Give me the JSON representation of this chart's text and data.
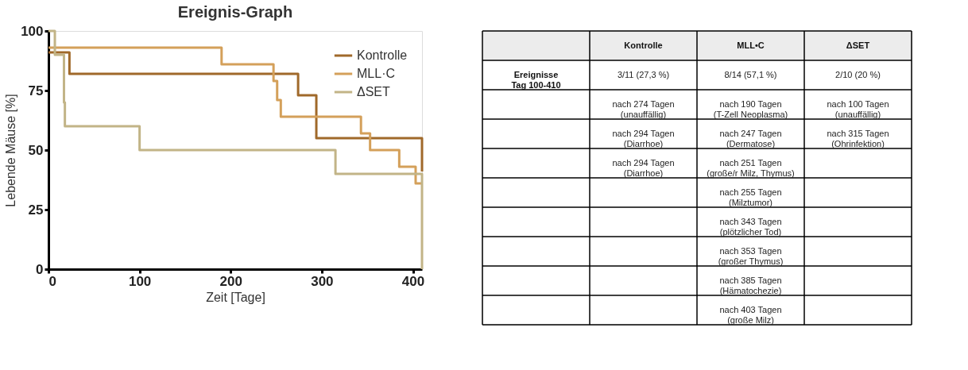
{
  "chart_data": [
    {
      "type": "step",
      "title": "Ereignis-Graph",
      "xlabel": "Zeit [Tage]",
      "ylabel": "Lebende Mäuse [%]",
      "xlim": [
        0,
        410
      ],
      "xticks": [
        0,
        100,
        200,
        300,
        400
      ],
      "ylim": [
        0,
        100
      ],
      "yticks": [
        0,
        25,
        50,
        75,
        100
      ],
      "grid": false,
      "legend": "top right",
      "series": [
        {
          "name": "Kontrolle",
          "color": "#a0692a",
          "x": [
            0,
            23,
            274,
            294,
            410
          ],
          "values": [
            91,
            82,
            73,
            55,
            41
          ]
        },
        {
          "name": "MLL·C",
          "color": "#d4a05a",
          "x": [
            0,
            190,
            247,
            251,
            255,
            343,
            353,
            385,
            403,
            410
          ],
          "values": [
            93,
            86,
            79,
            71,
            64,
            57,
            50,
            43,
            36,
            36
          ]
        },
        {
          "name": "ΔSET",
          "color": "#c2b487",
          "x": [
            0,
            7,
            17,
            18,
            100,
            315,
            410
          ],
          "values": [
            100,
            90,
            70,
            60,
            50,
            40,
            0
          ]
        }
      ]
    },
    {
      "type": "other",
      "categories": [
        null,
        "Kontrolle",
        "MLL•C",
        "ΔSET"
      ],
      "y_categories": [
        "Ereignisse\nTag 100-410",
        null,
        null,
        null,
        null,
        null,
        null,
        null,
        null
      ],
      "cell_labels": [
        [
          "3/11 (27,3 %)",
          "8/14 (57,1 %)",
          "2/10 (20 %)"
        ],
        [
          "nach 274 Tagen\n(unauffällig)",
          "nach 190 Tagen\n(T-Zell Neoplasma)",
          "nach 100 Tagen\n(unauffällig)"
        ],
        [
          "nach 294 Tagen\n(Diarrhoe)",
          "nach 247 Tagen\n(Dermatose)",
          "nach 315 Tagen\n(Ohrinfektion)"
        ],
        [
          "nach 294 Tagen\n(Diarrhoe)",
          "nach 251 Tagen\n(große/r Milz, Thymus)",
          null
        ],
        [
          null,
          "nach 255 Tagen\n(Milztumor)",
          null
        ],
        [
          null,
          "nach 343 Tagen\n(plötzlicher Tod)",
          null
        ],
        [
          null,
          "nach 353 Tagen\n(großer Thymus)",
          null
        ],
        [
          null,
          "nach 385 Tagen\n(Hämatochezie)",
          null
        ],
        [
          null,
          "nach 403 Tagen\n(große Milz)",
          null
        ]
      ]
    }
  ]
}
